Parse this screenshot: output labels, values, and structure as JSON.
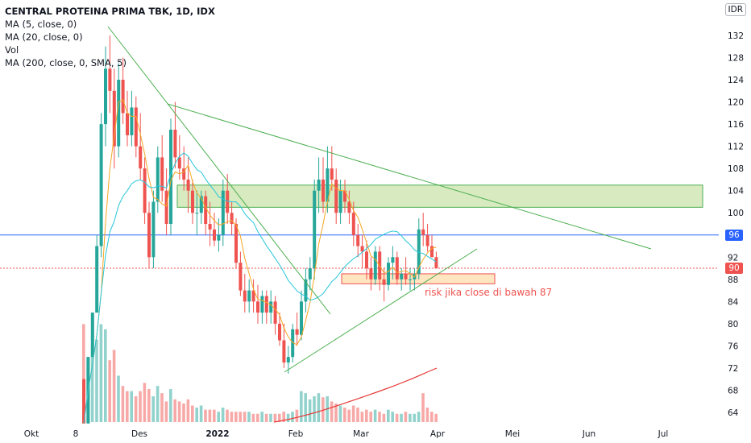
{
  "legend": {
    "title": "CENTRAL PROTEINA PRIMA TBK, 1D, IDX",
    "lines": [
      "MA (5, close, 0)",
      "MA (20, close, 0)",
      "Vol",
      "MA (200, close, 0, SMA, 5)"
    ]
  },
  "currency": "IDR",
  "annotation": "risk jika close di bawah 87",
  "price_tags": {
    "blue": "96",
    "red": "90"
  },
  "colors": {
    "up": "#26a69a",
    "down": "#ef5350",
    "ma5": "#f5a623",
    "ma20": "#26c6da",
    "ma200": "#e53935",
    "trend": "#4caf50",
    "zone_fill": "#8bc34a",
    "zone_border": "#4caf50",
    "hline_blue": "#2962ff",
    "hline_red": "#ef5350"
  },
  "chart_data": {
    "type": "candlestick",
    "y_axis": {
      "ticks": [
        64,
        68,
        72,
        76,
        80,
        84,
        88,
        92,
        96,
        100,
        104,
        108,
        112,
        116,
        120,
        124,
        128,
        132
      ],
      "ylim": [
        62,
        135
      ],
      "scale": "linear"
    },
    "x_axis": {
      "tick_labels": [
        "Okt",
        "8",
        "Des",
        "2022",
        "Feb",
        "Mar",
        "Apr",
        "Mei",
        "Jun",
        "Jul"
      ]
    },
    "grid": false,
    "candles_ohlc": [
      [
        70,
        70,
        62,
        62
      ],
      [
        62,
        74,
        62,
        74
      ],
      [
        74,
        82,
        74,
        82
      ],
      [
        82,
        96,
        82,
        94
      ],
      [
        94,
        118,
        92,
        116
      ],
      [
        116,
        130,
        112,
        126
      ],
      [
        126,
        132,
        118,
        122
      ],
      [
        122,
        126,
        108,
        112
      ],
      [
        112,
        127,
        110,
        124
      ],
      [
        124,
        128,
        116,
        118
      ],
      [
        118,
        122,
        112,
        114
      ],
      [
        114,
        122,
        112,
        119
      ],
      [
        119,
        121,
        110,
        112
      ],
      [
        112,
        118,
        106,
        108
      ],
      [
        108,
        110,
        98,
        100
      ],
      [
        100,
        102,
        90,
        92
      ],
      [
        92,
        104,
        90,
        102
      ],
      [
        102,
        112,
        100,
        110
      ],
      [
        110,
        114,
        102,
        104
      ],
      [
        104,
        108,
        96,
        98
      ],
      [
        98,
        117,
        96,
        115
      ],
      [
        115,
        120,
        108,
        110
      ],
      [
        110,
        114,
        106,
        108
      ],
      [
        108,
        112,
        104,
        106
      ],
      [
        106,
        110,
        100,
        104
      ],
      [
        104,
        106,
        98,
        100
      ],
      [
        100,
        104,
        96,
        100
      ],
      [
        100,
        104,
        98,
        103
      ],
      [
        103,
        104,
        96,
        98
      ],
      [
        98,
        102,
        94,
        97
      ],
      [
        97,
        100,
        94,
        95
      ],
      [
        95,
        99,
        93,
        96
      ],
      [
        96,
        106,
        94,
        104
      ],
      [
        104,
        107,
        98,
        100
      ],
      [
        100,
        102,
        96,
        98
      ],
      [
        98,
        99,
        90,
        91
      ],
      [
        91,
        93,
        85,
        86
      ],
      [
        86,
        89,
        82,
        84
      ],
      [
        84,
        88,
        82,
        86
      ],
      [
        86,
        88,
        82,
        84
      ],
      [
        84,
        87,
        80,
        82
      ],
      [
        82,
        86,
        80,
        85
      ],
      [
        85,
        86,
        80,
        82
      ],
      [
        82,
        86,
        80,
        84
      ],
      [
        84,
        85,
        78,
        80
      ],
      [
        80,
        82,
        76,
        77
      ],
      [
        77,
        80,
        72,
        73
      ],
      [
        73,
        76,
        71,
        74
      ],
      [
        74,
        80,
        73,
        79
      ],
      [
        79,
        82,
        76,
        78
      ],
      [
        78,
        86,
        77,
        84
      ],
      [
        84,
        90,
        82,
        88
      ],
      [
        88,
        92,
        86,
        90
      ],
      [
        90,
        106,
        88,
        104
      ],
      [
        104,
        110,
        100,
        106
      ],
      [
        106,
        110,
        100,
        102
      ],
      [
        102,
        112,
        100,
        108
      ],
      [
        108,
        112,
        104,
        106
      ],
      [
        106,
        108,
        98,
        100
      ],
      [
        100,
        106,
        98,
        104
      ],
      [
        104,
        106,
        100,
        102
      ],
      [
        102,
        104,
        98,
        100
      ],
      [
        100,
        102,
        94,
        96
      ],
      [
        96,
        98,
        92,
        94
      ],
      [
        94,
        96,
        90,
        93
      ],
      [
        93,
        95,
        88,
        90
      ],
      [
        90,
        92,
        86,
        88
      ],
      [
        88,
        94,
        87,
        93
      ],
      [
        93,
        94,
        86,
        88
      ],
      [
        88,
        90,
        84,
        87
      ],
      [
        87,
        92,
        86,
        91
      ],
      [
        91,
        94,
        88,
        92
      ],
      [
        92,
        93,
        87,
        88
      ],
      [
        88,
        90,
        86,
        89
      ],
      [
        89,
        92,
        87,
        88
      ],
      [
        88,
        90,
        86,
        88
      ],
      [
        88,
        90,
        86,
        89
      ],
      [
        89,
        99,
        88,
        97
      ],
      [
        97,
        100,
        94,
        96
      ],
      [
        96,
        98,
        93,
        94
      ],
      [
        94,
        96,
        92,
        92
      ],
      [
        92,
        93,
        90,
        90
      ]
    ],
    "volumes_rel": [
      0.95,
      0.55,
      0.75,
      0.8,
      0.95,
      0.9,
      0.6,
      0.7,
      0.45,
      0.35,
      0.3,
      0.3,
      0.25,
      0.3,
      0.38,
      0.32,
      0.25,
      0.35,
      0.28,
      0.2,
      0.32,
      0.22,
      0.2,
      0.18,
      0.22,
      0.16,
      0.14,
      0.16,
      0.12,
      0.12,
      0.12,
      0.1,
      0.14,
      0.12,
      0.1,
      0.1,
      0.1,
      0.1,
      0.1,
      0.08,
      0.08,
      0.1,
      0.08,
      0.08,
      0.08,
      0.08,
      0.1,
      0.08,
      0.1,
      0.12,
      0.3,
      0.28,
      0.22,
      0.25,
      0.28,
      0.24,
      0.25,
      0.2,
      0.18,
      0.16,
      0.14,
      0.12,
      0.16,
      0.14,
      0.1,
      0.12,
      0.1,
      0.12,
      0.1,
      0.08,
      0.12,
      0.1,
      0.08,
      0.08,
      0.1,
      0.08,
      0.08,
      0.1,
      0.28,
      0.14,
      0.1,
      0.08
    ],
    "zones": [
      {
        "price_low": 101,
        "price_high": 105,
        "type": "resistance"
      },
      {
        "price_low": 87,
        "price_high": 89,
        "type": "support"
      }
    ]
  }
}
